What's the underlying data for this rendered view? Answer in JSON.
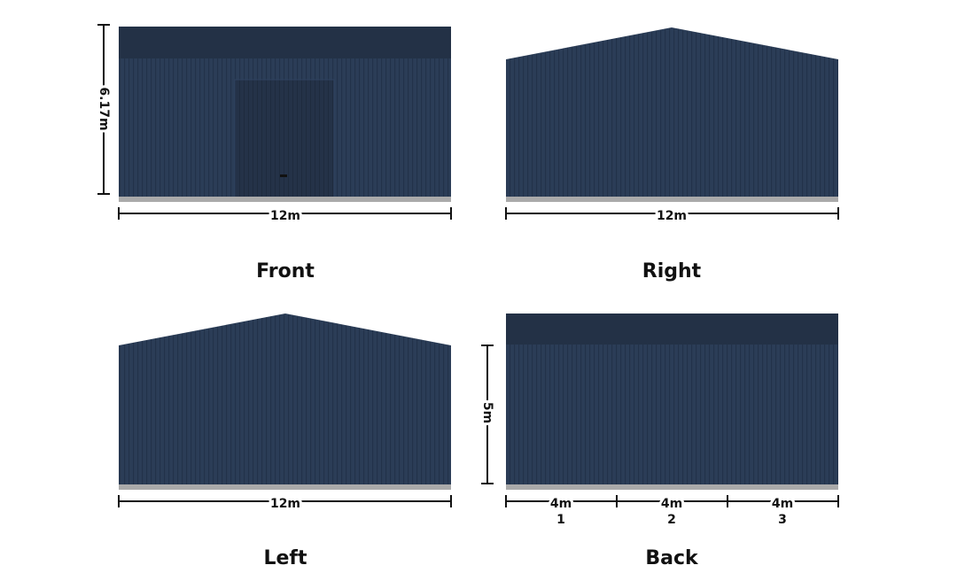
{
  "views": [
    {
      "label": "Front",
      "width": "12m",
      "height": "6.17m"
    },
    {
      "label": "Right",
      "width": "12m"
    },
    {
      "label": "Left",
      "width": "12m"
    },
    {
      "label": "Back",
      "height": "5m",
      "bays": [
        {
          "width": "4m",
          "number": 1
        },
        {
          "width": "4m",
          "number": 2
        },
        {
          "width": "4m",
          "number": 3
        }
      ]
    }
  ]
}
